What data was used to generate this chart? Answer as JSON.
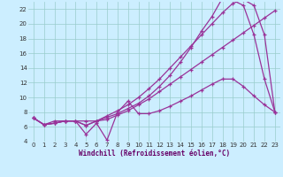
{
  "bg_color": "#cceeff",
  "grid_color": "#99cccc",
  "line_color": "#993399",
  "xlabel": "Windchill (Refroidissement éolien,°C)",
  "xlim": [
    -0.5,
    23.5
  ],
  "ylim": [
    4,
    23
  ],
  "yticks": [
    4,
    6,
    8,
    10,
    12,
    14,
    16,
    18,
    20,
    22
  ],
  "xticks": [
    0,
    1,
    2,
    3,
    4,
    5,
    6,
    7,
    8,
    9,
    10,
    11,
    12,
    13,
    14,
    15,
    16,
    17,
    18,
    19,
    20,
    21,
    22,
    23
  ],
  "series": [
    [
      7.2,
      6.3,
      6.8,
      6.8,
      6.8,
      6.8,
      6.8,
      7.0,
      7.6,
      8.2,
      9.0,
      9.8,
      10.8,
      11.8,
      12.8,
      13.8,
      14.8,
      15.8,
      16.8,
      17.8,
      18.8,
      19.8,
      20.8,
      21.8
    ],
    [
      7.2,
      6.3,
      6.5,
      6.8,
      6.8,
      6.2,
      6.8,
      7.5,
      8.2,
      9.0,
      10.0,
      11.2,
      12.5,
      14.0,
      15.5,
      17.0,
      18.5,
      20.0,
      21.5,
      22.8,
      23.3,
      22.5,
      18.5,
      8.0
    ],
    [
      7.2,
      6.3,
      6.5,
      6.8,
      6.8,
      5.0,
      6.5,
      4.2,
      8.0,
      9.5,
      7.8,
      7.8,
      8.2,
      8.8,
      9.5,
      10.2,
      11.0,
      11.8,
      12.5,
      12.5,
      11.5,
      10.2,
      9.0,
      8.0
    ],
    [
      7.2,
      6.3,
      6.5,
      6.8,
      6.8,
      6.2,
      6.8,
      7.3,
      7.8,
      8.5,
      9.2,
      10.2,
      11.5,
      13.0,
      14.8,
      16.8,
      19.0,
      21.0,
      23.5,
      23.2,
      22.5,
      18.5,
      12.5,
      8.0
    ]
  ]
}
